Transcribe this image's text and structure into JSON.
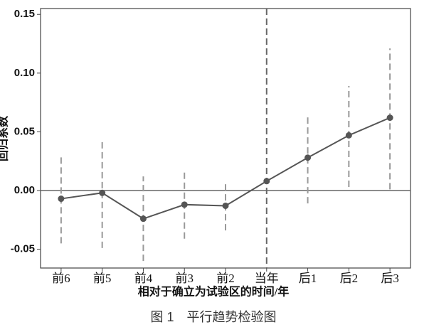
{
  "chart_data": {
    "type": "errorline",
    "caption": "图 1　平行趋势检验图",
    "x_label": "相对于确立为试验区的时间/年",
    "y_label": "回归系数",
    "categories": [
      "前6",
      "前5",
      "前4",
      "前3",
      "前2",
      "当年",
      "后1",
      "后2",
      "后3"
    ],
    "values": [
      -0.007,
      -0.002,
      -0.024,
      -0.012,
      -0.013,
      0.008,
      0.028,
      0.047,
      0.062
    ],
    "lower": [
      -0.045,
      -0.049,
      -0.06,
      -0.041,
      -0.034,
      null,
      -0.011,
      0.003,
      0.001
    ],
    "upper": [
      0.031,
      0.042,
      0.012,
      0.018,
      0.007,
      null,
      0.064,
      0.089,
      0.121
    ],
    "color": "#555555",
    "ylim": [
      -0.066,
      0.155
    ],
    "yticks": [
      -0.05,
      {
        "value": 0,
        "label": "0.00"
      },
      0.05,
      {
        "value": 0.1,
        "label": "0.10"
      },
      0.15
    ],
    "hline": 0,
    "vline_index": 5
  }
}
